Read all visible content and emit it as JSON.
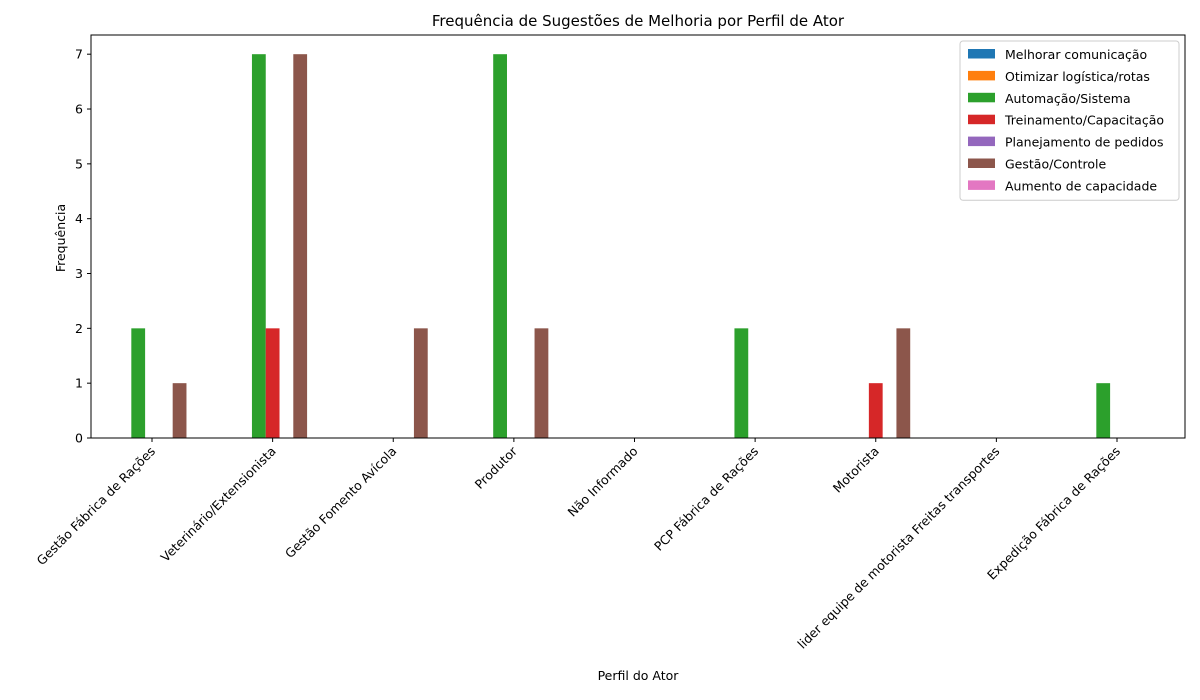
{
  "chart_data": {
    "type": "bar",
    "title": "Frequência de Sugestões de Melhoria por Perfil de Ator",
    "xlabel": "Perfil do Ator",
    "ylabel": "Frequência",
    "ylim": [
      0,
      7.35
    ],
    "yticks": [
      0,
      1,
      2,
      3,
      4,
      5,
      6,
      7
    ],
    "legend_position": "top-right",
    "grid": false,
    "categories": [
      "Gestão Fábrica de Rações",
      "Veterinário/Extensionista",
      "Gestão Fomento Avícola",
      "Produtor",
      "Não Informado",
      "PCP Fábrica de Rações",
      "Motorista",
      "lider equipe de motorista Freitas transportes",
      "Expedição Fábrica de Rações"
    ],
    "series": [
      {
        "name": "Melhorar comunicação",
        "color": "#1f77b4",
        "values": [
          0,
          0,
          0,
          0,
          0,
          0,
          0,
          0,
          0
        ]
      },
      {
        "name": "Otimizar logística/rotas",
        "color": "#ff7f0e",
        "values": [
          0,
          0,
          0,
          0,
          0,
          0,
          0,
          0,
          0
        ]
      },
      {
        "name": "Automação/Sistema",
        "color": "#2ca02c",
        "values": [
          2,
          7,
          0,
          7,
          0,
          2,
          0,
          0,
          1
        ]
      },
      {
        "name": "Treinamento/Capacitação",
        "color": "#d62728",
        "values": [
          0,
          2,
          0,
          0,
          0,
          0,
          1,
          0,
          0
        ]
      },
      {
        "name": "Planejamento de pedidos",
        "color": "#9467bd",
        "values": [
          0,
          0,
          0,
          0,
          0,
          0,
          0,
          0,
          0
        ]
      },
      {
        "name": "Gestão/Controle",
        "color": "#8c564b",
        "values": [
          1,
          7,
          2,
          2,
          0,
          0,
          2,
          0,
          0
        ]
      },
      {
        "name": "Aumento de capacidade",
        "color": "#e377c2",
        "values": [
          0,
          0,
          0,
          0,
          0,
          0,
          0,
          0,
          0
        ]
      }
    ]
  }
}
